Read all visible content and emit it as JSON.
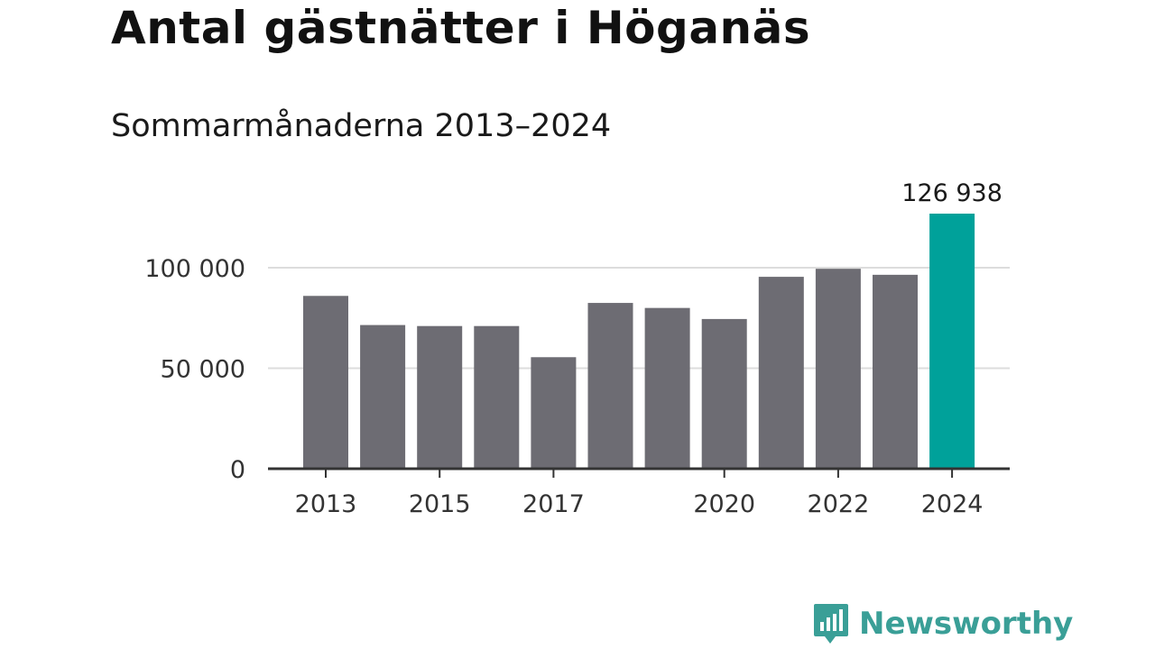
{
  "title": "Antal gästnätter i Höganäs",
  "subtitle": "Sommarmånaderna 2013–2024",
  "brand": {
    "name": "Newsworthy",
    "color": "#3a9f97",
    "icon": "newsworthy-logo-icon"
  },
  "colors": {
    "bar": "#6d6c73",
    "highlight": "#00a19a",
    "grid": "#dddddd",
    "axis": "#333333"
  },
  "chart_data": {
    "type": "bar",
    "categories": [
      "2013",
      "2014",
      "2015",
      "2016",
      "2017",
      "2018",
      "2019",
      "2020",
      "2021",
      "2022",
      "2023",
      "2024"
    ],
    "values": [
      86000,
      71500,
      71000,
      71000,
      55500,
      82500,
      80000,
      74500,
      95500,
      99500,
      96500,
      126938
    ],
    "xticks": [
      "2013",
      "2015",
      "2017",
      "2020",
      "2022",
      "2024"
    ],
    "yticks": [
      0,
      50000,
      100000
    ],
    "ytick_labels": [
      "0",
      "50 000",
      "100 000"
    ],
    "ylim": [
      0,
      126938
    ],
    "highlight_index": 11,
    "highlight_label": "126 938",
    "grid": true
  }
}
